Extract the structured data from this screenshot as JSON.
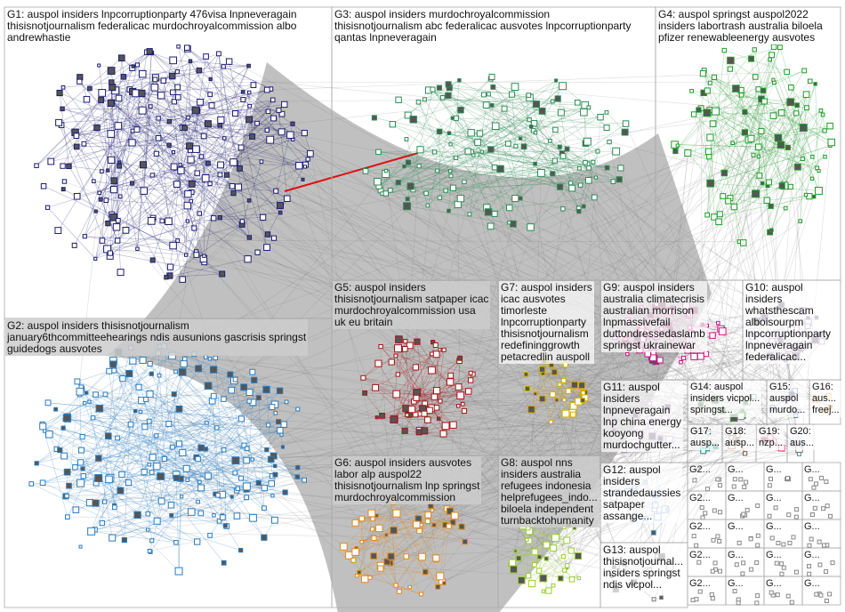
{
  "groups": [
    {
      "color": "#1c1c72",
      "lines": [
        "G1: auspol insiders lnpcorruptionparty 476visa lnpneveragain",
        "thisisnotjournalism federalicac murdochroyalcommission albo",
        "andrewhastie"
      ]
    },
    {
      "color": "#2b7bbd",
      "lines": [
        "G2: auspol insiders thisisnotjournalism",
        "january6thcommitteehearings ndis ausunions gascrisis springst",
        "guidedogs ausvotes"
      ]
    },
    {
      "color": "#2e8b57",
      "lines": [
        "G3: auspol insiders murdochroyalcommission",
        "thisisnotjournalism abc federalicac ausvotes lnpcorruptionparty",
        "qantas lnpneveragain"
      ]
    },
    {
      "color": "#1f9a2a",
      "lines": [
        "G4: auspol springst auspol2022",
        "insiders labortrash australia biloela",
        "pfizer renewableenergy ausvotes"
      ]
    },
    {
      "color": "#a31515",
      "lines": [
        "G5: auspol insiders",
        "thisisnotjournalism satpaper icac",
        "murdochroyalcommission usa",
        "uk eu britain"
      ]
    },
    {
      "color": "#e0891c",
      "lines": [
        "G6: auspol insiders ausvotes",
        "labor alp auspol22",
        "thisisnotjournalism lnp springst",
        "murdochroyalcommission"
      ]
    },
    {
      "color": "#d4aa00",
      "lines": [
        "G7: auspol insiders",
        "icac ausvotes",
        "timorleste",
        "lnpcorruptionparty",
        "thisisnotjournalism",
        "redefininggrowth",
        "petacredlin auspoll"
      ]
    },
    {
      "color": "#9acd32",
      "lines": [
        "G8: auspol nns",
        "insiders australia",
        "refugees indonesia",
        "helprefugees_indo...",
        "biloela independent",
        "turnbacktohumanity"
      ]
    },
    {
      "color": "#c7157f",
      "lines": [
        "G9: auspol insiders",
        "australia climatecrisis",
        "australian morrison",
        "lnpmassivefail",
        "duttondressedaslamb",
        "springst ukrainewar"
      ]
    },
    {
      "color": "#8a6fb5",
      "lines": [
        "G10: auspol",
        "insiders",
        "whatsthescam",
        "alboisourpm",
        "lnpcorruptionparty",
        "lnpneveragain",
        "federalicac..."
      ]
    },
    {
      "color": "#b08ac8",
      "lines": [
        "G11: auspol",
        "insiders",
        "lnpneveragain",
        "lnp china energy",
        "kooyong",
        "murdochgutter..."
      ]
    },
    {
      "color": "#6a9fd0",
      "lines": [
        "G12: auspol",
        "insiders",
        "strandedaussies",
        "satpaper",
        "assange..."
      ]
    },
    {
      "color": "#7a7a7a",
      "lines": [
        "G13: auspol",
        "thisisnotjournal...",
        "insiders springst",
        "ndis vicpol..."
      ]
    },
    {
      "color": "#4caf50",
      "lines": [
        "G14: auspol",
        "insiders vicpol...",
        "springst..."
      ]
    },
    {
      "color": "#3f51b5",
      "lines": [
        "G15:",
        "auspol",
        "murdo..."
      ]
    },
    {
      "color": "#ff9800",
      "lines": [
        "G16:",
        "aus...",
        "freej..."
      ]
    },
    {
      "color": "#009688",
      "lines": [
        "G17:",
        "ausp..."
      ]
    },
    {
      "color": "#795548",
      "lines": [
        "G18:",
        "ausp..."
      ]
    },
    {
      "color": "#e91e63",
      "lines": [
        "G19:",
        "nzp..."
      ]
    },
    {
      "color": "#607d8b",
      "lines": [
        "G20:",
        "aus..."
      ]
    }
  ],
  "small_groups": [
    "G2...",
    "G...",
    "G...",
    "G...",
    "G2...",
    "G...",
    "G...",
    "G...",
    "G2...",
    "G...",
    "G...",
    "G...",
    "G2...",
    "G...",
    "G...",
    "G...",
    "G2...",
    "G...",
    "G...",
    "G..."
  ]
}
